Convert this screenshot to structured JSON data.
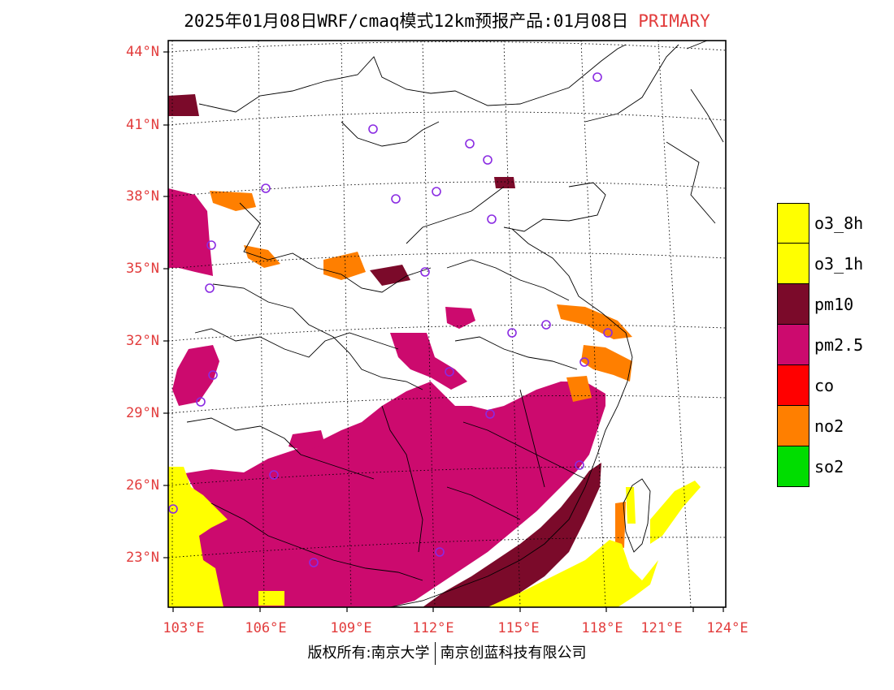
{
  "title": {
    "main": "2025年01月08日WRF/cmaq模式12km预报产品:01月08日",
    "mode": "PRIMARY"
  },
  "axes": {
    "lat_labels": [
      "44°N",
      "41°N",
      "38°N",
      "35°N",
      "32°N",
      "29°N",
      "26°N",
      "23°N"
    ],
    "lon_labels": [
      "103°E",
      "106°E",
      "109°E",
      "112°E",
      "115°E",
      "118°E",
      "121°E",
      "124°E"
    ]
  },
  "legend": [
    {
      "label": "o3_8h",
      "color": "#ffff00"
    },
    {
      "label": "o3_1h",
      "color": "#ffff00"
    },
    {
      "label": "pm10",
      "color": "#7b0a2a"
    },
    {
      "label": "pm2.5",
      "color": "#cc0a6e"
    },
    {
      "label": "co",
      "color": "#ff0000"
    },
    {
      "label": "no2",
      "color": "#ff7f00"
    },
    {
      "label": "so2",
      "color": "#00dd00"
    }
  ],
  "colors": {
    "pm2_5": "#cc0a6e",
    "pm10": "#7b0a2a",
    "no2": "#ff7f00",
    "o3": "#ffff00",
    "label_red": "#e23c3c",
    "station_ring": "#8a2be2"
  },
  "footer": {
    "copyright": "版权所有:南京大学",
    "company": "南京创蓝科技有限公司"
  }
}
